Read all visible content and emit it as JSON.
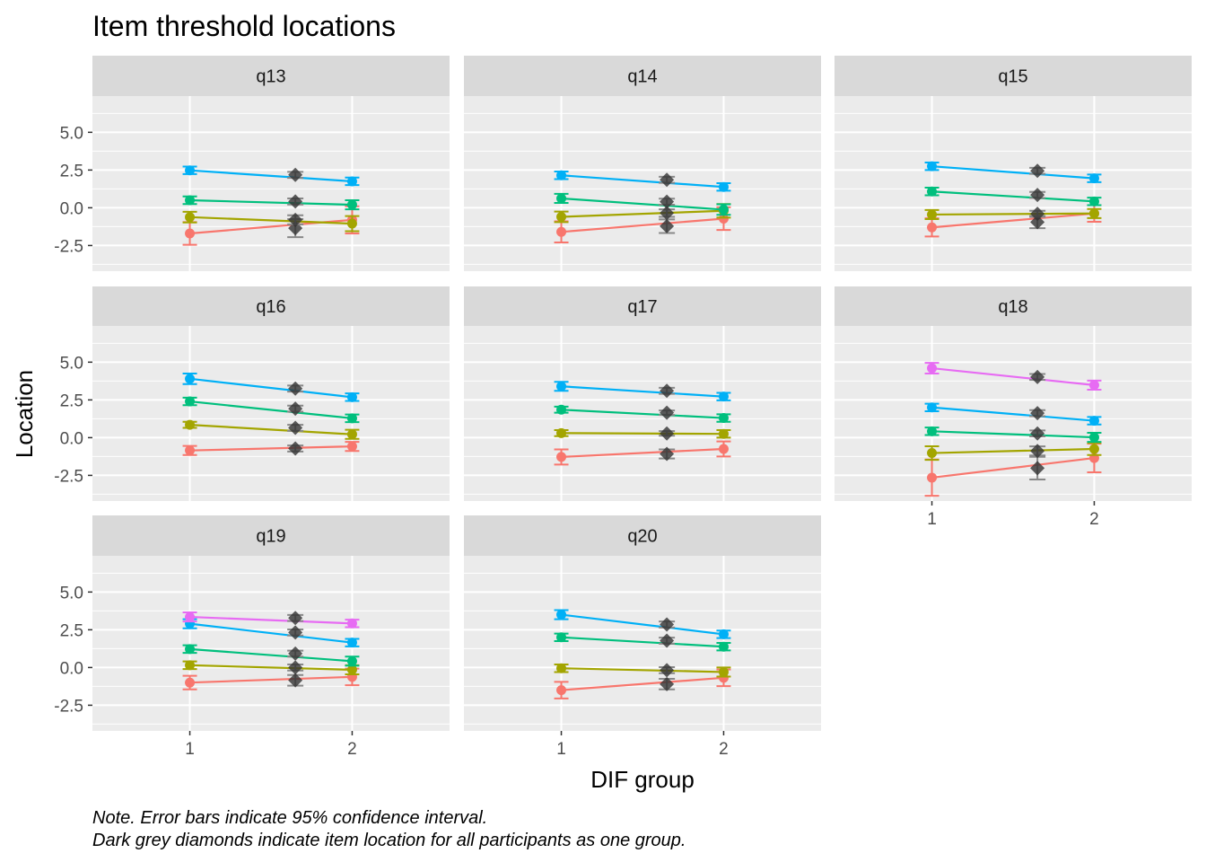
{
  "chart_data": {
    "type": "line",
    "title": "Item threshold locations",
    "xlabel": "DIF group",
    "ylabel": "Location",
    "x_ticks": [
      "1",
      "2"
    ],
    "y_ticks": [
      "5.0",
      "2.5",
      "0.0",
      "-2.5"
    ],
    "y_tick_values": [
      5.0,
      2.5,
      0.0,
      -2.5
    ],
    "ylim": [
      -4.2,
      7.4
    ],
    "xlim": [
      0.4,
      2.6
    ],
    "grid": true,
    "caption_lines": [
      "Note. Error bars indicate 95% confidence interval.",
      "Dark grey diamonds indicate item location for all participants as one group."
    ],
    "threshold_colors": [
      "#F8766D",
      "#A3A500",
      "#00BF7D",
      "#00B0F6",
      "#E76BF3"
    ],
    "pooled_marker_color": "#333333",
    "pooled_x": 1.65,
    "panels": [
      {
        "name": "q13",
        "thresholds": [
          {
            "g1": -1.7,
            "g1_err": 0.75,
            "g2": -0.8,
            "g2_err": 0.9,
            "pooled": -1.35,
            "pooled_err": 0.6
          },
          {
            "g1": -0.62,
            "g1_err": 0.35,
            "g2": -1.05,
            "g2_err": 0.5,
            "pooled": -0.8,
            "pooled_err": 0.3
          },
          {
            "g1": 0.5,
            "g1_err": 0.25,
            "g2": 0.2,
            "g2_err": 0.3,
            "pooled": 0.42,
            "pooled_err": 0.2
          },
          {
            "g1": 2.48,
            "g1_err": 0.25,
            "g2": 1.75,
            "g2_err": 0.25,
            "pooled": 2.18,
            "pooled_err": 0.2
          }
        ]
      },
      {
        "name": "q14",
        "thresholds": [
          {
            "g1": -1.6,
            "g1_err": 0.7,
            "g2": -0.72,
            "g2_err": 0.75,
            "pooled": -1.22,
            "pooled_err": 0.45
          },
          {
            "g1": -0.6,
            "g1_err": 0.35,
            "g2": -0.2,
            "g2_err": 0.45,
            "pooled": -0.35,
            "pooled_err": 0.25
          },
          {
            "g1": 0.62,
            "g1_err": 0.3,
            "g2": -0.12,
            "g2_err": 0.35,
            "pooled": 0.4,
            "pooled_err": 0.2
          },
          {
            "g1": 2.15,
            "g1_err": 0.25,
            "g2": 1.38,
            "g2_err": 0.25,
            "pooled": 1.85,
            "pooled_err": 0.2
          }
        ]
      },
      {
        "name": "q15",
        "thresholds": [
          {
            "g1": -1.3,
            "g1_err": 0.6,
            "g2": -0.38,
            "g2_err": 0.55,
            "pooled": -0.95,
            "pooled_err": 0.4
          },
          {
            "g1": -0.45,
            "g1_err": 0.3,
            "g2": -0.38,
            "g2_err": 0.3,
            "pooled": -0.4,
            "pooled_err": 0.2
          },
          {
            "g1": 1.08,
            "g1_err": 0.25,
            "g2": 0.42,
            "g2_err": 0.25,
            "pooled": 0.85,
            "pooled_err": 0.2
          },
          {
            "g1": 2.75,
            "g1_err": 0.25,
            "g2": 1.95,
            "g2_err": 0.25,
            "pooled": 2.45,
            "pooled_err": 0.2
          }
        ]
      },
      {
        "name": "q16",
        "thresholds": [
          {
            "g1": -0.85,
            "g1_err": 0.3,
            "g2": -0.58,
            "g2_err": 0.3,
            "pooled": -0.72,
            "pooled_err": 0.2
          },
          {
            "g1": 0.85,
            "g1_err": 0.2,
            "g2": 0.22,
            "g2_err": 0.3,
            "pooled": 0.65,
            "pooled_err": 0.2
          },
          {
            "g1": 2.4,
            "g1_err": 0.25,
            "g2": 1.28,
            "g2_err": 0.25,
            "pooled": 1.92,
            "pooled_err": 0.2
          },
          {
            "g1": 3.9,
            "g1_err": 0.35,
            "g2": 2.68,
            "g2_err": 0.25,
            "pooled": 3.25,
            "pooled_err": 0.2
          }
        ]
      },
      {
        "name": "q17",
        "thresholds": [
          {
            "g1": -1.28,
            "g1_err": 0.5,
            "g2": -0.75,
            "g2_err": 0.5,
            "pooled": -1.08,
            "pooled_err": 0.3
          },
          {
            "g1": 0.3,
            "g1_err": 0.2,
            "g2": 0.25,
            "g2_err": 0.25,
            "pooled": 0.28,
            "pooled_err": 0.15
          },
          {
            "g1": 1.85,
            "g1_err": 0.2,
            "g2": 1.3,
            "g2_err": 0.25,
            "pooled": 1.65,
            "pooled_err": 0.15
          },
          {
            "g1": 3.4,
            "g1_err": 0.3,
            "g2": 2.72,
            "g2_err": 0.25,
            "pooled": 3.1,
            "pooled_err": 0.2
          }
        ]
      },
      {
        "name": "q18",
        "thresholds": [
          {
            "g1": -2.65,
            "g1_err": 1.2,
            "g2": -1.35,
            "g2_err": 0.95,
            "pooled": -2.02,
            "pooled_err": 0.75
          },
          {
            "g1": -1.02,
            "g1_err": 0.45,
            "g2": -0.75,
            "g2_err": 0.4,
            "pooled": -0.88,
            "pooled_err": 0.3
          },
          {
            "g1": 0.42,
            "g1_err": 0.25,
            "g2": 0.02,
            "g2_err": 0.3,
            "pooled": 0.28,
            "pooled_err": 0.2
          },
          {
            "g1": 2.0,
            "g1_err": 0.25,
            "g2": 1.12,
            "g2_err": 0.25,
            "pooled": 1.62,
            "pooled_err": 0.2
          },
          {
            "g1": 4.6,
            "g1_err": 0.35,
            "g2": 3.48,
            "g2_err": 0.3,
            "pooled": 4.02,
            "pooled_err": 0.2
          }
        ]
      },
      {
        "name": "q19",
        "thresholds": [
          {
            "g1": -1.0,
            "g1_err": 0.45,
            "g2": -0.62,
            "g2_err": 0.55,
            "pooled": -0.85,
            "pooled_err": 0.35
          },
          {
            "g1": 0.15,
            "g1_err": 0.25,
            "g2": -0.15,
            "g2_err": 0.3,
            "pooled": 0.0,
            "pooled_err": 0.2
          },
          {
            "g1": 1.22,
            "g1_err": 0.25,
            "g2": 0.42,
            "g2_err": 0.3,
            "pooled": 0.92,
            "pooled_err": 0.2
          },
          {
            "g1": 2.9,
            "g1_err": 0.3,
            "g2": 1.65,
            "g2_err": 0.25,
            "pooled": 2.32,
            "pooled_err": 0.2
          },
          {
            "g1": 3.35,
            "g1_err": 0.3,
            "g2": 2.92,
            "g2_err": 0.25,
            "pooled": 3.28,
            "pooled_err": 0.2
          }
        ]
      },
      {
        "name": "q20",
        "thresholds": [
          {
            "g1": -1.5,
            "g1_err": 0.55,
            "g2": -0.68,
            "g2_err": 0.55,
            "pooled": -1.1,
            "pooled_err": 0.35
          },
          {
            "g1": -0.05,
            "g1_err": 0.25,
            "g2": -0.3,
            "g2_err": 0.3,
            "pooled": -0.18,
            "pooled_err": 0.2
          },
          {
            "g1": 2.0,
            "g1_err": 0.25,
            "g2": 1.38,
            "g2_err": 0.25,
            "pooled": 1.78,
            "pooled_err": 0.2
          },
          {
            "g1": 3.5,
            "g1_err": 0.3,
            "g2": 2.2,
            "g2_err": 0.25,
            "pooled": 2.85,
            "pooled_err": 0.2
          }
        ]
      }
    ]
  }
}
